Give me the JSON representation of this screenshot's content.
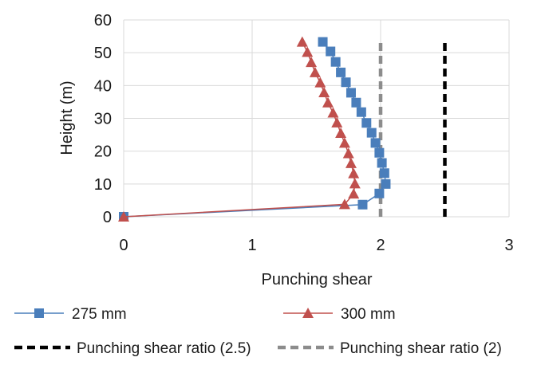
{
  "chart_data": {
    "type": "line",
    "title": "",
    "xlabel": "Punching shear",
    "ylabel": "Height (m)",
    "xlim": [
      0,
      3
    ],
    "ylim": [
      0,
      60
    ],
    "x_ticks": [
      "0",
      "1",
      "2",
      "3"
    ],
    "y_ticks": [
      "0",
      "10",
      "20",
      "30",
      "40",
      "50",
      "60"
    ],
    "grid": "major gridlines on both axes",
    "legend_position": "bottom",
    "series": [
      {
        "name": "275 mm",
        "color": "#4a7ebb",
        "marker": "square",
        "line_style": "solid",
        "points": [
          {
            "x": 0.0,
            "y": 0.0
          },
          {
            "x": 1.86,
            "y": 3.7
          },
          {
            "x": 1.99,
            "y": 7.1
          },
          {
            "x": 2.04,
            "y": 10.0
          },
          {
            "x": 2.03,
            "y": 13.3
          },
          {
            "x": 2.01,
            "y": 16.4
          },
          {
            "x": 1.99,
            "y": 19.5
          },
          {
            "x": 1.96,
            "y": 22.5
          },
          {
            "x": 1.93,
            "y": 25.6
          },
          {
            "x": 1.89,
            "y": 28.6
          },
          {
            "x": 1.85,
            "y": 31.9
          },
          {
            "x": 1.81,
            "y": 34.8
          },
          {
            "x": 1.77,
            "y": 37.8
          },
          {
            "x": 1.73,
            "y": 41.0
          },
          {
            "x": 1.69,
            "y": 44.0
          },
          {
            "x": 1.65,
            "y": 47.2
          },
          {
            "x": 1.61,
            "y": 50.4
          },
          {
            "x": 1.55,
            "y": 53.3
          }
        ]
      },
      {
        "name": "300 mm",
        "color": "#c0504d",
        "marker": "triangle",
        "line_style": "solid",
        "points": [
          {
            "x": 0.0,
            "y": 0.0
          },
          {
            "x": 1.72,
            "y": 3.8
          },
          {
            "x": 1.79,
            "y": 7.0
          },
          {
            "x": 1.8,
            "y": 10.1
          },
          {
            "x": 1.79,
            "y": 13.2
          },
          {
            "x": 1.77,
            "y": 16.3
          },
          {
            "x": 1.75,
            "y": 19.3
          },
          {
            "x": 1.72,
            "y": 22.5
          },
          {
            "x": 1.69,
            "y": 25.5
          },
          {
            "x": 1.66,
            "y": 28.7
          },
          {
            "x": 1.63,
            "y": 31.7
          },
          {
            "x": 1.59,
            "y": 34.8
          },
          {
            "x": 1.56,
            "y": 37.9
          },
          {
            "x": 1.53,
            "y": 40.9
          },
          {
            "x": 1.49,
            "y": 44.0
          },
          {
            "x": 1.46,
            "y": 47.1
          },
          {
            "x": 1.43,
            "y": 50.2
          },
          {
            "x": 1.39,
            "y": 53.3
          }
        ]
      },
      {
        "name": "Punching shear ratio (2.5)",
        "color": "#000000",
        "marker": "none",
        "line_style": "dashed",
        "points": [
          {
            "x": 2.5,
            "y": 0
          },
          {
            "x": 2.5,
            "y": 54
          }
        ]
      },
      {
        "name": "Punching shear ratio (2)",
        "color": "#8c8c8c",
        "marker": "none",
        "line_style": "dashed",
        "points": [
          {
            "x": 2.0,
            "y": 0
          },
          {
            "x": 2.0,
            "y": 54
          }
        ]
      }
    ]
  }
}
